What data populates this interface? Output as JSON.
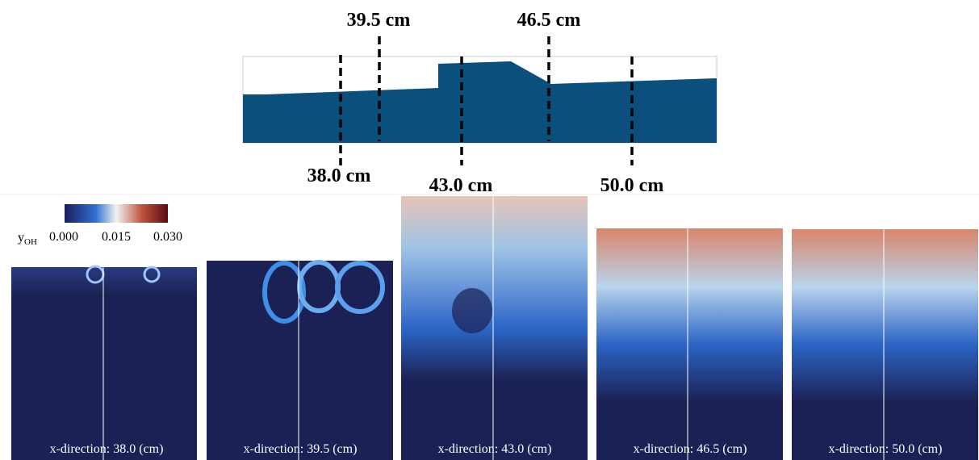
{
  "profile": {
    "labels": [
      "39.5 cm",
      "46.5 cm",
      "38.0 cm",
      "43.0 cm",
      "50.0 cm"
    ]
  },
  "colorbar": {
    "label": "y",
    "label_sub": "OH",
    "ticks": [
      "0.000",
      "0.015",
      "0.030"
    ]
  },
  "panels": [
    {
      "caption": "x-direction: 38.0 (cm)"
    },
    {
      "caption": "x-direction: 39.5 (cm)"
    },
    {
      "caption": "x-direction: 43.0 (cm)"
    },
    {
      "caption": "x-direction: 46.5 (cm)"
    },
    {
      "caption": "x-direction: 50.0 (cm)"
    }
  ]
}
